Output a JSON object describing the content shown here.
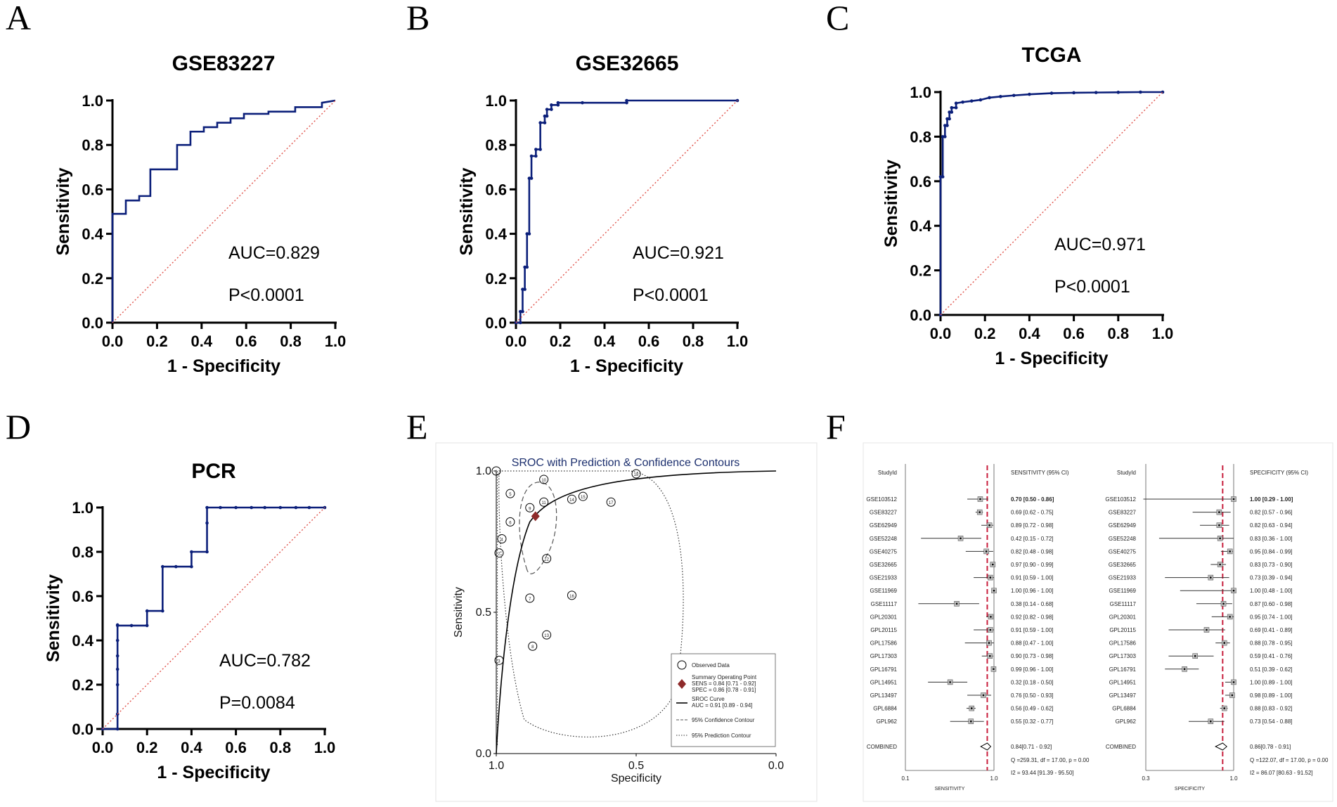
{
  "panel_letters": [
    "A",
    "B",
    "C",
    "D",
    "E",
    "F"
  ],
  "chart_data": [
    {
      "panel": "A",
      "type": "line",
      "title": "GSE83227",
      "xlabel": "1 - Specificity",
      "ylabel": "Sensitivity",
      "xlim": [
        0,
        1
      ],
      "ylim": [
        0,
        1
      ],
      "ticks": [
        "0.0",
        "0.2",
        "0.4",
        "0.6",
        "0.8",
        "1.0"
      ],
      "annotations": [
        "AUC=0.829",
        "P<0.0001"
      ],
      "series": [
        {
          "name": "ROC",
          "color": "#0b1f7a",
          "markers": false,
          "x": [
            0,
            0,
            0.06,
            0.06,
            0.12,
            0.12,
            0.17,
            0.17,
            0.29,
            0.29,
            0.35,
            0.35,
            0.41,
            0.41,
            0.47,
            0.47,
            0.53,
            0.53,
            0.59,
            0.59,
            0.7,
            0.7,
            0.82,
            0.82,
            0.94,
            0.94,
            1
          ],
          "y": [
            0,
            0.49,
            0.49,
            0.55,
            0.55,
            0.57,
            0.57,
            0.69,
            0.69,
            0.8,
            0.8,
            0.86,
            0.86,
            0.88,
            0.88,
            0.9,
            0.9,
            0.92,
            0.92,
            0.94,
            0.94,
            0.95,
            0.95,
            0.97,
            0.97,
            0.99,
            1
          ]
        },
        {
          "name": "Reference",
          "color": "#e0524a",
          "dashed": true,
          "x": [
            0,
            1
          ],
          "y": [
            0,
            1
          ]
        }
      ]
    },
    {
      "panel": "B",
      "type": "line",
      "title": "GSE32665",
      "xlabel": "1 - Specificity",
      "ylabel": "Sensitivity",
      "xlim": [
        0,
        1
      ],
      "ylim": [
        0,
        1
      ],
      "ticks": [
        "0.0",
        "0.2",
        "0.4",
        "0.6",
        "0.8",
        "1.0"
      ],
      "annotations": [
        "AUC=0.921",
        "P<0.0001"
      ],
      "series": [
        {
          "name": "ROC",
          "color": "#0b1f7a",
          "markers": true,
          "x": [
            0,
            0.02,
            0.02,
            0.03,
            0.03,
            0.04,
            0.04,
            0.05,
            0.05,
            0.06,
            0.06,
            0.07,
            0.07,
            0.09,
            0.09,
            0.11,
            0.11,
            0.13,
            0.13,
            0.14,
            0.14,
            0.16,
            0.16,
            0.19,
            0.19,
            0.3,
            0.5,
            0.5,
            1
          ],
          "y": [
            0,
            0,
            0.05,
            0.05,
            0.15,
            0.15,
            0.25,
            0.25,
            0.4,
            0.4,
            0.65,
            0.65,
            0.75,
            0.75,
            0.78,
            0.78,
            0.9,
            0.9,
            0.93,
            0.93,
            0.96,
            0.96,
            0.98,
            0.98,
            0.99,
            0.99,
            0.99,
            1,
            1
          ]
        },
        {
          "name": "Reference",
          "color": "#e0524a",
          "dashed": true,
          "x": [
            0,
            1
          ],
          "y": [
            0,
            1
          ]
        }
      ]
    },
    {
      "panel": "C",
      "type": "line",
      "title": "TCGA",
      "xlabel": "1 - Specificity",
      "ylabel": "Sensitivity",
      "xlim": [
        0,
        1
      ],
      "ylim": [
        0,
        1
      ],
      "ticks": [
        "0.0",
        "0.2",
        "0.4",
        "0.6",
        "0.8",
        "1.0"
      ],
      "annotations": [
        "AUC=0.971",
        "P<0.0001"
      ],
      "series": [
        {
          "name": "ROC",
          "color": "#0b1f7a",
          "markers": true,
          "x": [
            0,
            0,
            0.01,
            0.01,
            0.02,
            0.02,
            0.03,
            0.03,
            0.04,
            0.04,
            0.05,
            0.05,
            0.07,
            0.07,
            0.1,
            0.14,
            0.18,
            0.22,
            0.27,
            0.33,
            0.4,
            0.5,
            0.6,
            0.7,
            0.8,
            0.9,
            1
          ],
          "y": [
            0,
            0.62,
            0.62,
            0.8,
            0.8,
            0.85,
            0.85,
            0.88,
            0.88,
            0.91,
            0.91,
            0.93,
            0.93,
            0.95,
            0.955,
            0.96,
            0.965,
            0.975,
            0.98,
            0.985,
            0.99,
            0.995,
            0.997,
            0.998,
            0.999,
            1,
            1
          ]
        },
        {
          "name": "Reference",
          "color": "#e0524a",
          "dashed": true,
          "x": [
            0,
            1
          ],
          "y": [
            0,
            1
          ]
        }
      ]
    },
    {
      "panel": "D",
      "type": "line",
      "title": "PCR",
      "xlabel": "1 - Specificity",
      "ylabel": "Sensitivity",
      "xlim": [
        0,
        1
      ],
      "ylim": [
        0,
        1
      ],
      "ticks": [
        "0.0",
        "0.2",
        "0.4",
        "0.6",
        "0.8",
        "1.0"
      ],
      "annotations": [
        "AUC=0.782",
        "P=0.0084"
      ],
      "series": [
        {
          "name": "ROC",
          "color": "#0b1f7a",
          "markers": true,
          "x": [
            0,
            0.067,
            0.067,
            0.067,
            0.067,
            0.067,
            0.067,
            0.067,
            0.067,
            0.13,
            0.2,
            0.2,
            0.27,
            0.27,
            0.33,
            0.4,
            0.4,
            0.47,
            0.47,
            0.47,
            0.53,
            0.6,
            0.67,
            0.73,
            0.8,
            0.87,
            0.93,
            1
          ],
          "y": [
            0,
            0,
            0.067,
            0.2,
            0.27,
            0.33,
            0.4,
            0.47,
            0.467,
            0.467,
            0.467,
            0.533,
            0.533,
            0.733,
            0.733,
            0.733,
            0.8,
            0.8,
            0.93,
            1,
            1,
            1,
            1,
            1,
            1,
            1,
            1,
            1
          ]
        },
        {
          "name": "Reference",
          "color": "#e0524a",
          "dashed": true,
          "x": [
            0,
            1
          ],
          "y": [
            0,
            1
          ]
        }
      ]
    },
    {
      "panel": "E",
      "type": "scatter",
      "title": "SROC with Prediction & Confidence Contours",
      "xlabel": "Specificity",
      "ylabel": "Sensitivity",
      "xlim": [
        1,
        0
      ],
      "ylim": [
        0,
        1
      ],
      "xticks": [
        "1.0",
        "0.5",
        "0.0"
      ],
      "yticks": [
        "0.0",
        "0.5",
        "1.0"
      ],
      "observed": [
        {
          "spec": 1.0,
          "sens": 1.0,
          "label": "1"
        },
        {
          "spec": 0.99,
          "sens": 0.71,
          "label": "2"
        },
        {
          "spec": 0.99,
          "sens": 0.33,
          "label": "3"
        },
        {
          "spec": 0.98,
          "sens": 0.76,
          "label": "4"
        },
        {
          "spec": 0.95,
          "sens": 0.92,
          "label": "5"
        },
        {
          "spec": 0.95,
          "sens": 0.82,
          "label": "6"
        },
        {
          "spec": 0.88,
          "sens": 0.55,
          "label": "7"
        },
        {
          "spec": 0.87,
          "sens": 0.38,
          "label": "8"
        },
        {
          "spec": 0.88,
          "sens": 0.87,
          "label": "9"
        },
        {
          "spec": 0.83,
          "sens": 0.97,
          "label": "10"
        },
        {
          "spec": 0.83,
          "sens": 0.89,
          "label": "11"
        },
        {
          "spec": 0.82,
          "sens": 0.69,
          "label": "12"
        },
        {
          "spec": 0.82,
          "sens": 0.42,
          "label": "13"
        },
        {
          "spec": 0.73,
          "sens": 0.9,
          "label": "14"
        },
        {
          "spec": 0.69,
          "sens": 0.91,
          "label": "15"
        },
        {
          "spec": 0.73,
          "sens": 0.56,
          "label": "16"
        },
        {
          "spec": 0.59,
          "sens": 0.89,
          "label": "17"
        },
        {
          "spec": 0.5,
          "sens": 0.99,
          "label": "18"
        }
      ],
      "summary_point": {
        "sens": 0.84,
        "spec": 0.86,
        "color": "#8e2a2a"
      },
      "sroc_auc": 0.91,
      "legend": [
        "Observed Data",
        "Summary Operating Point",
        "SENS = 0.84 [0.71 - 0.92]",
        "SPEC = 0.86 [0.78 - 0.91]",
        "SROC Curve",
        "AUC = 0.91 [0.89 - 0.94]",
        "95% Confidence Contour",
        "95% Prediction Contour"
      ]
    },
    {
      "panel": "F",
      "type": "forest",
      "title": "",
      "studies": [
        "GSE103512",
        "GSE83227",
        "GSE62949",
        "GSE52248",
        "GSE40275",
        "GSE32665",
        "GSE21933",
        "GSE11969",
        "GSE11117",
        "GPL20301",
        "GPL20115",
        "GPL17586",
        "GPL17303",
        "GPL16791",
        "GPL14951",
        "GPL13497",
        "GPL6884",
        "GPL962"
      ],
      "sensitivity": {
        "header_study": "StudyId",
        "header_value": "SENSITIVITY (95% CI)",
        "axis_label": "SENSITIVITY",
        "axis_ticks": [
          "0.1",
          "1.0"
        ],
        "axis_range": [
          0.1,
          1.0
        ],
        "est": [
          0.7,
          0.69,
          0.89,
          0.42,
          0.82,
          0.97,
          0.91,
          1.0,
          0.38,
          0.92,
          0.91,
          0.88,
          0.9,
          0.99,
          0.32,
          0.76,
          0.56,
          0.55
        ],
        "lo": [
          0.5,
          0.62,
          0.72,
          0.15,
          0.48,
          0.9,
          0.59,
          0.96,
          0.14,
          0.82,
          0.59,
          0.47,
          0.73,
          0.96,
          0.18,
          0.5,
          0.49,
          0.32
        ],
        "hi": [
          0.86,
          0.75,
          0.98,
          0.72,
          0.98,
          0.99,
          1.0,
          1.0,
          0.68,
          0.98,
          1.0,
          1.0,
          0.98,
          1.0,
          0.5,
          0.93,
          0.62,
          0.77
        ],
        "text": [
          "0.70 [0.50 - 0.86]",
          "0.69 [0.62 - 0.75]",
          "0.89 [0.72 - 0.98]",
          "0.42 [0.15 - 0.72]",
          "0.82 [0.48 - 0.98]",
          "0.97 [0.90 - 0.99]",
          "0.91 [0.59 - 1.00]",
          "1.00 [0.96 - 1.00]",
          "0.38 [0.14 - 0.68]",
          "0.92 [0.82 - 0.98]",
          "0.91 [0.59 - 1.00]",
          "0.88 [0.47 - 1.00]",
          "0.90 [0.73 - 0.98]",
          "0.99 [0.96 - 1.00]",
          "0.32 [0.18 - 0.50]",
          "0.76 [0.50 - 0.93]",
          "0.56 [0.49 - 0.62]",
          "0.55 [0.32 - 0.77]"
        ],
        "combined": {
          "est": 0.84,
          "lo": 0.71,
          "hi": 0.92,
          "text": "0.84[0.71 - 0.92]"
        },
        "stats": [
          "Q =259.31, df = 17.00, p = 0.00",
          "I2 = 93.44 [91.39 - 95.50]"
        ]
      },
      "specificity": {
        "header_study": "StudyId",
        "header_value": "SPECIFICITY (95% CI)",
        "axis_label": "SPECIFICITY",
        "axis_ticks": [
          "0.3",
          "1.0"
        ],
        "axis_range": [
          0.3,
          1.0
        ],
        "est": [
          1.0,
          0.82,
          0.82,
          0.83,
          0.95,
          0.83,
          0.73,
          1.0,
          0.87,
          0.95,
          0.69,
          0.88,
          0.59,
          0.51,
          1.0,
          0.98,
          0.88,
          0.73
        ],
        "lo": [
          0.29,
          0.57,
          0.63,
          0.36,
          0.84,
          0.73,
          0.39,
          0.48,
          0.6,
          0.74,
          0.41,
          0.78,
          0.41,
          0.39,
          0.89,
          0.89,
          0.83,
          0.54
        ],
        "hi": [
          1.0,
          0.96,
          0.94,
          1.0,
          0.99,
          0.9,
          0.94,
          1.0,
          0.98,
          1.0,
          0.89,
          0.95,
          0.76,
          0.62,
          1.0,
          1.0,
          0.92,
          0.88
        ],
        "text": [
          "1.00 [0.29 - 1.00]",
          "0.82 [0.57 - 0.96]",
          "0.82 [0.63 - 0.94]",
          "0.83 [0.36 - 1.00]",
          "0.95 [0.84 - 0.99]",
          "0.83 [0.73 - 0.90]",
          "0.73 [0.39 - 0.94]",
          "1.00 [0.48 - 1.00]",
          "0.87 [0.60 - 0.98]",
          "0.95 [0.74 - 1.00]",
          "0.69 [0.41 - 0.89]",
          "0.88 [0.78 - 0.95]",
          "0.59 [0.41 - 0.76]",
          "0.51 [0.39 - 0.62]",
          "1.00 [0.89 - 1.00]",
          "0.98 [0.89 - 1.00]",
          "0.88 [0.83 - 0.92]",
          "0.73 [0.54 - 0.88]"
        ],
        "combined": {
          "est": 0.86,
          "lo": 0.78,
          "hi": 0.91,
          "text": "0.86[0.78 - 0.91]"
        },
        "stats": [
          "Q =122.07, df = 17.00, p = 0.00",
          "I2 = 86.07 [80.63 - 91.52]"
        ]
      },
      "combined_label": "COMBINED"
    }
  ]
}
